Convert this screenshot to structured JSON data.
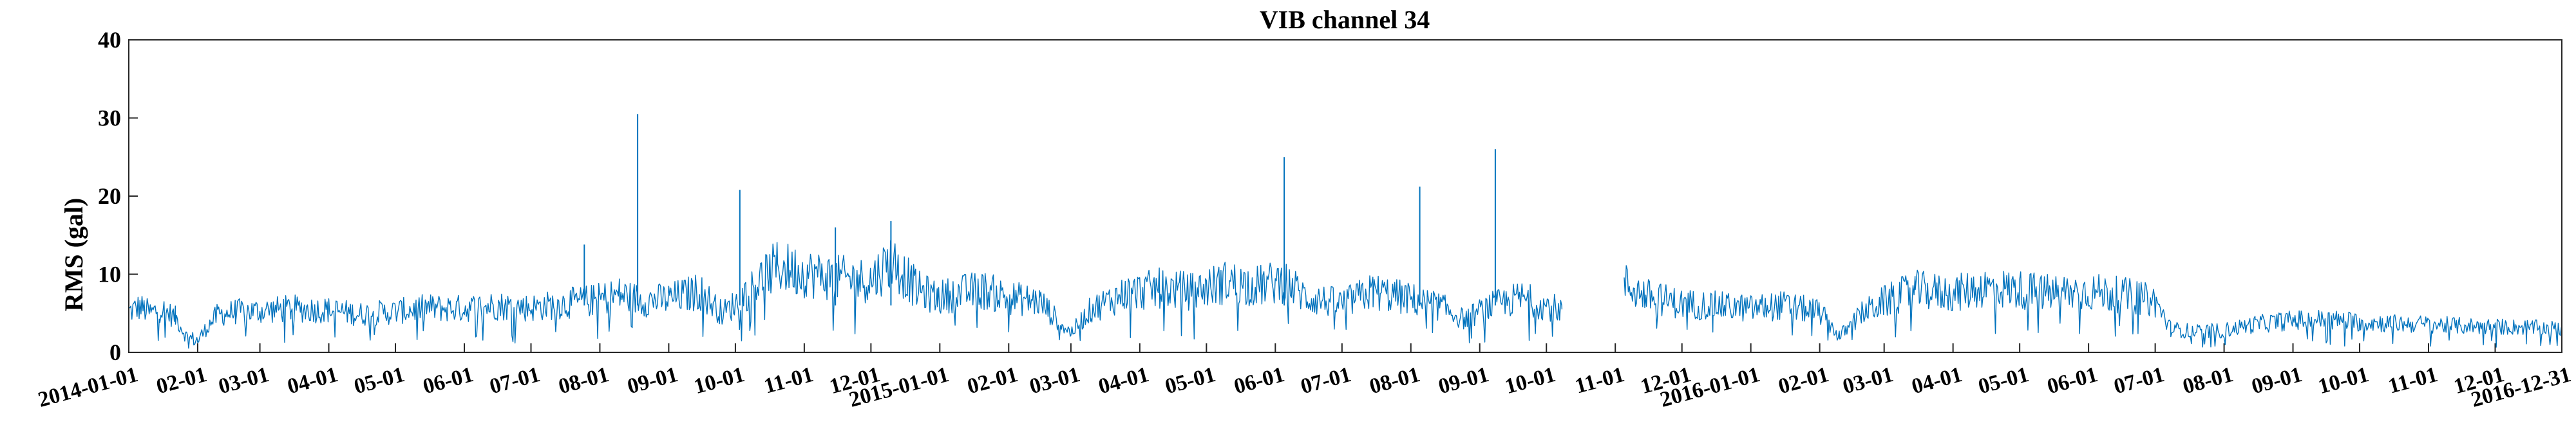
{
  "chart_data": {
    "type": "line",
    "title": "VIB channel 34",
    "xlabel": "",
    "ylabel": "RMS (gal)",
    "xlim": [
      "2014-01-01",
      "2016-12-31"
    ],
    "ylim": [
      0,
      40
    ],
    "y_ticks": [
      0,
      10,
      20,
      30,
      40
    ],
    "x_ticks": [
      "2014-01-01",
      "02-01",
      "03-01",
      "04-01",
      "05-01",
      "06-01",
      "07-01",
      "08-01",
      "09-01",
      "10-01",
      "11-01",
      "12-01",
      "2015-01-01",
      "02-01",
      "03-01",
      "04-01",
      "05-01",
      "06-01",
      "07-01",
      "08-01",
      "09-01",
      "10-01",
      "11-01",
      "12-01",
      "2016-01-01",
      "02-01",
      "03-01",
      "04-01",
      "05-01",
      "06-01",
      "07-01",
      "08-01",
      "09-01",
      "10-01",
      "11-01",
      "12-01",
      "2016-12-31"
    ],
    "grid": false,
    "color": "#0072BD",
    "series": [
      {
        "name": "",
        "points": [
          [
            "2014-01-01",
            5.2
          ],
          [
            "2014-01-06",
            5.8
          ],
          [
            "2014-01-11",
            5.0
          ],
          [
            "2014-01-15",
            5.6
          ],
          [
            "2014-01-22",
            4.5
          ],
          [
            "2014-01-27",
            2.0
          ],
          [
            "2014-02-01",
            1.5
          ],
          [
            "2014-02-06",
            3.5
          ],
          [
            "2014-02-10",
            4.8
          ],
          [
            "2014-02-18",
            5.2
          ],
          [
            "2014-03-01",
            5.3
          ],
          [
            "2014-03-15",
            5.6
          ],
          [
            "2014-04-01",
            5.4
          ],
          [
            "2014-04-15",
            4.9
          ],
          [
            "2014-05-01",
            5.2
          ],
          [
            "2014-05-15",
            5.7
          ],
          [
            "2014-06-01",
            5.6
          ],
          [
            "2014-06-15",
            6.0
          ],
          [
            "2014-07-01",
            5.7
          ],
          [
            "2014-07-15",
            6.2
          ],
          [
            "2014-07-25",
            6.5
          ],
          [
            "2014-08-01",
            6.8
          ],
          [
            "2014-08-10",
            7.4
          ],
          [
            "2014-08-20",
            6.6
          ],
          [
            "2014-09-01",
            6.8
          ],
          [
            "2014-09-15",
            7.8
          ],
          [
            "2014-09-25",
            5.0
          ],
          [
            "2014-10-01",
            6.2
          ],
          [
            "2014-10-10",
            8.8
          ],
          [
            "2014-10-20",
            11.0
          ],
          [
            "2014-11-01",
            10.2
          ],
          [
            "2014-11-15",
            9.5
          ],
          [
            "2014-12-01",
            9.2
          ],
          [
            "2014-12-10",
            11.8
          ],
          [
            "2014-12-22",
            8.0
          ],
          [
            "2014-12-31",
            7.0
          ],
          [
            "2015-01-08",
            7.5
          ],
          [
            "2015-01-20",
            8.0
          ],
          [
            "2015-02-01",
            7.0
          ],
          [
            "2015-02-15",
            6.5
          ],
          [
            "2015-02-25",
            3.5
          ],
          [
            "2015-03-01",
            2.5
          ],
          [
            "2015-03-10",
            5.5
          ],
          [
            "2015-03-25",
            7.5
          ],
          [
            "2015-04-10",
            8.2
          ],
          [
            "2015-04-25",
            7.8
          ],
          [
            "2015-05-10",
            9.0
          ],
          [
            "2015-05-25",
            8.5
          ],
          [
            "2015-06-05",
            9.2
          ],
          [
            "2015-06-15",
            7.0
          ],
          [
            "2015-07-01",
            6.2
          ],
          [
            "2015-07-15",
            7.8
          ],
          [
            "2015-08-01",
            6.8
          ],
          [
            "2015-08-15",
            5.8
          ],
          [
            "2015-08-25",
            4.2
          ],
          [
            "2015-09-05",
            5.8
          ],
          [
            "2015-09-20",
            7.0
          ],
          [
            "2015-09-30",
            6.0
          ],
          [
            "2015-10-08",
            5.5
          ],
          [
            null,
            null
          ],
          [
            "2015-11-05",
            8.8
          ],
          [
            "2015-11-15",
            7.2
          ],
          [
            "2015-12-01",
            6.2
          ],
          [
            "2015-12-15",
            6.0
          ],
          [
            "2016-01-01",
            5.6
          ],
          [
            "2016-01-15",
            6.0
          ],
          [
            "2016-02-01",
            5.2
          ],
          [
            "2016-02-10",
            2.0
          ],
          [
            "2016-02-20",
            5.0
          ],
          [
            "2016-03-01",
            6.5
          ],
          [
            "2016-03-15",
            8.0
          ],
          [
            "2016-04-01",
            7.5
          ],
          [
            "2016-04-15",
            8.3
          ],
          [
            "2016-05-01",
            8.0
          ],
          [
            "2016-05-15",
            7.6
          ],
          [
            "2016-06-01",
            7.8
          ],
          [
            "2016-06-20",
            7.2
          ],
          [
            "2016-07-01",
            6.5
          ],
          [
            "2016-07-08",
            3.0
          ],
          [
            "2016-07-20",
            2.6
          ],
          [
            "2016-08-01",
            2.8
          ],
          [
            "2016-08-15",
            3.6
          ],
          [
            "2016-09-01",
            4.1
          ],
          [
            "2016-09-15",
            4.2
          ],
          [
            "2016-10-01",
            3.9
          ],
          [
            "2016-10-15",
            3.7
          ],
          [
            "2016-11-01",
            3.6
          ],
          [
            "2016-11-15",
            3.4
          ],
          [
            "2016-12-01",
            3.3
          ],
          [
            "2016-12-15",
            3.2
          ],
          [
            "2016-12-31",
            3.0
          ]
        ]
      }
    ],
    "spikes": [
      [
        "2014-08-18",
        30.5
      ],
      [
        "2014-10-03",
        20.8
      ],
      [
        "2014-07-25",
        13.8
      ],
      [
        "2014-11-15",
        16.0
      ],
      [
        "2014-12-10",
        16.8
      ],
      [
        "2015-06-05",
        25.0
      ],
      [
        "2015-08-05",
        21.2
      ],
      [
        "2015-09-08",
        26.0
      ]
    ]
  }
}
